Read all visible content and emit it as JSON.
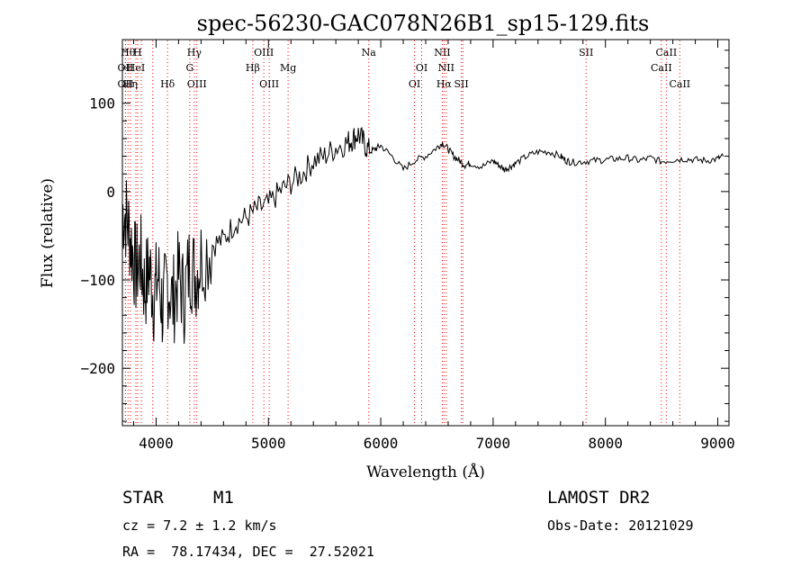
{
  "chart_data": {
    "type": "line",
    "title": "spec-56230-GAC078N26B1_sp15-129.fits",
    "xlabel": "Wavelength (Å)",
    "ylabel": "Flux (relative)",
    "xlim": [
      3700,
      9100
    ],
    "ylim": [
      -265,
      172
    ],
    "xticks": [
      4000,
      5000,
      6000,
      7000,
      8000,
      9000
    ],
    "yticks": [
      -200,
      -100,
      0,
      100
    ],
    "line_color": "#000000",
    "marker_color": "#ff0000",
    "series": [
      {
        "x": [
          3700,
          3740,
          3780,
          3820,
          3860,
          3900,
          3940,
          3980,
          4020,
          4060,
          4100,
          4150,
          4200,
          4250,
          4300,
          4350,
          4400,
          4500,
          4600,
          4700,
          4800,
          4900,
          5000,
          5100,
          5200,
          5300,
          5400,
          5500,
          5600,
          5700,
          5750,
          5800,
          5850,
          5900,
          5950,
          6000,
          6100,
          6200,
          6300,
          6400,
          6500,
          6550,
          6600,
          6650,
          6700,
          6750,
          6800,
          6900,
          7000,
          7050,
          7100,
          7150,
          7200,
          7300,
          7400,
          7500,
          7600,
          7650,
          7700,
          7800,
          7900,
          8000,
          8100,
          8200,
          8300,
          8400,
          8500,
          8600,
          8700,
          8800,
          8900,
          9000,
          9050
        ],
        "y": [
          -20,
          -30,
          -60,
          -90,
          -75,
          -110,
          -85,
          -120,
          -95,
          -135,
          -100,
          -125,
          -95,
          -120,
          -80,
          -95,
          -75,
          -60,
          -55,
          -35,
          -30,
          -20,
          -15,
          0,
          10,
          20,
          35,
          40,
          50,
          55,
          60,
          65,
          55,
          45,
          48,
          52,
          40,
          25,
          35,
          40,
          50,
          55,
          48,
          40,
          35,
          30,
          32,
          28,
          35,
          30,
          25,
          28,
          32,
          40,
          45,
          45,
          40,
          35,
          33,
          34,
          35,
          36,
          37,
          38,
          35,
          38,
          34,
          36,
          37,
          36,
          35,
          37,
          40
        ]
      }
    ],
    "lines": [
      {
        "x": 3750,
        "label": "Hθ",
        "row": 1
      },
      {
        "x": 3727,
        "label": "OII",
        "row": 2
      },
      {
        "x": 3771,
        "label": "Hη",
        "row": 3
      },
      {
        "x": 3727,
        "label": "OII",
        "row": 3
      },
      {
        "x": 3820,
        "label": "HeI",
        "row": 2
      },
      {
        "x": 3835,
        "label": "H",
        "row": 1
      },
      {
        "x": 3869,
        "label": "",
        "row": 0
      },
      {
        "x": 3970,
        "label": "",
        "row": 0
      },
      {
        "x": 4102,
        "label": "Hδ",
        "row": 3
      },
      {
        "x": 4300,
        "label": "G",
        "row": 2
      },
      {
        "x": 4340,
        "label": "Hγ",
        "row": 1
      },
      {
        "x": 4363,
        "label": "OIII",
        "row": 3
      },
      {
        "x": 4861,
        "label": "Hβ",
        "row": 2
      },
      {
        "x": 4959,
        "label": "OIII",
        "row": 1
      },
      {
        "x": 5007,
        "label": "OIII",
        "row": 3
      },
      {
        "x": 5175,
        "label": "Mg",
        "row": 2
      },
      {
        "x": 5893,
        "label": "Na",
        "row": 1
      },
      {
        "x": 6300,
        "label": "OI",
        "row": 3
      },
      {
        "x": 6364,
        "label": "OI",
        "row": 2
      },
      {
        "x": 6548,
        "label": "NII",
        "row": 1
      },
      {
        "x": 6563,
        "label": "Hα",
        "row": 3
      },
      {
        "x": 6583,
        "label": "NII",
        "row": 2
      },
      {
        "x": 6717,
        "label": "SII",
        "row": 3
      },
      {
        "x": 6731,
        "label": "",
        "row": 0
      },
      {
        "x": 7828,
        "label": "SII",
        "row": 1
      },
      {
        "x": 8498,
        "label": "CaII",
        "row": 2
      },
      {
        "x": 8542,
        "label": "CaII",
        "row": 1
      },
      {
        "x": 8662,
        "label": "CaII",
        "row": 3
      }
    ]
  },
  "info": {
    "class": "STAR",
    "subclass": "M1",
    "survey": "LAMOST DR2",
    "cz": "cz = 7.2 ± 1.2 km/s",
    "obs_date": "Obs-Date: 20121029",
    "radec": "RA =  78.17434, DEC =  27.52021"
  }
}
